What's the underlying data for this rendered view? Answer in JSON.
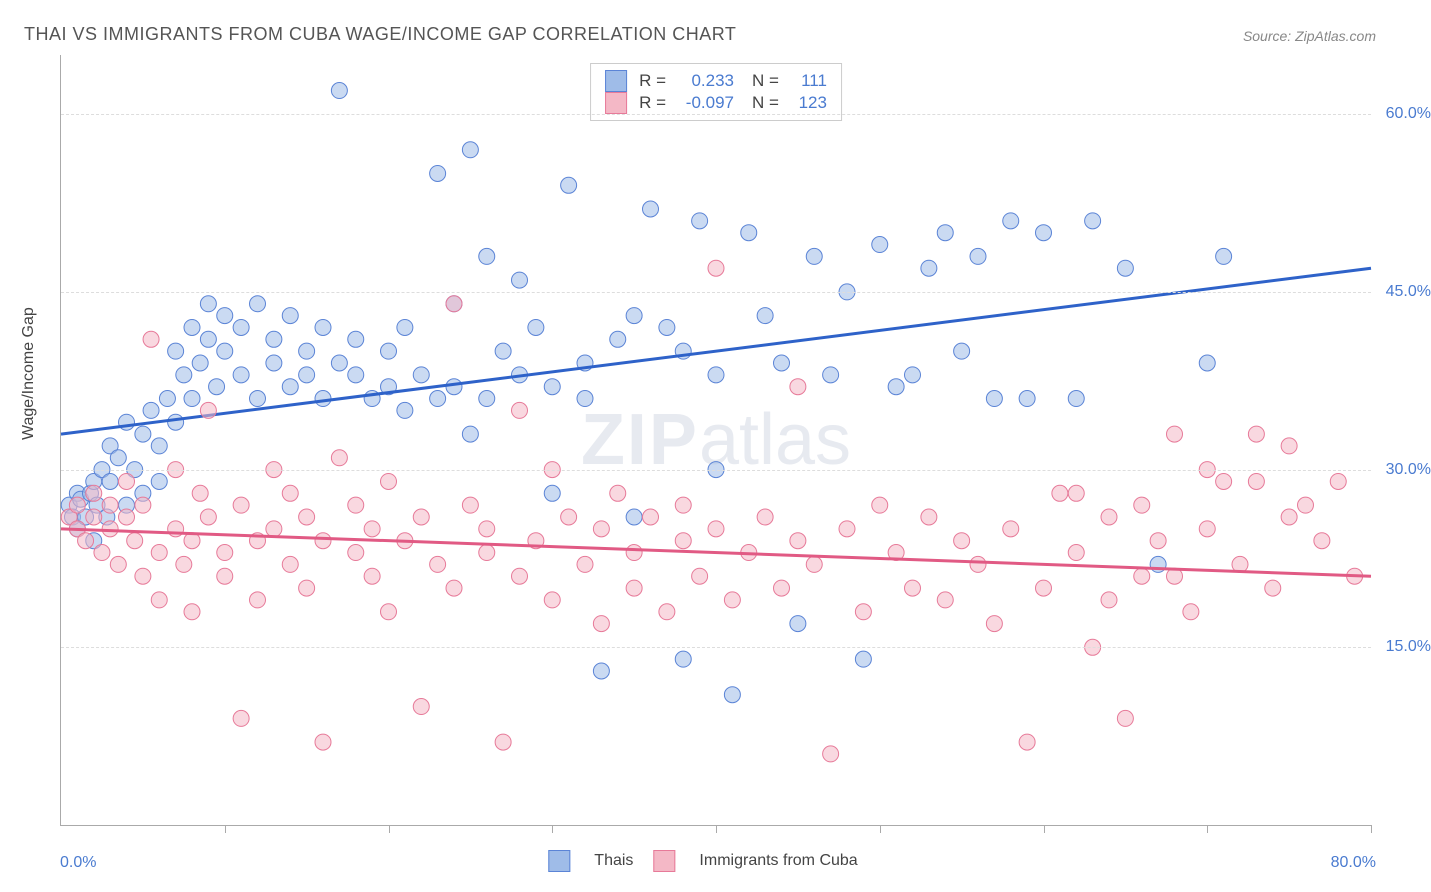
{
  "title": "THAI VS IMMIGRANTS FROM CUBA WAGE/INCOME GAP CORRELATION CHART",
  "source": "Source: ZipAtlas.com",
  "ylabel": "Wage/Income Gap",
  "watermark_zip": "ZIP",
  "watermark_atlas": "atlas",
  "chart": {
    "type": "scatter",
    "xlim": [
      0,
      80
    ],
    "ylim": [
      0,
      65
    ],
    "x_tick_positions": [
      0,
      10,
      20,
      30,
      40,
      50,
      60,
      70,
      80
    ],
    "y_gridlines": [
      15,
      30,
      45,
      60
    ],
    "y_tick_labels": [
      "15.0%",
      "30.0%",
      "45.0%",
      "60.0%"
    ],
    "x_start_label": "0.0%",
    "x_end_label": "80.0%",
    "background_color": "#ffffff",
    "grid_color": "#dddddd",
    "axis_color": "#aaaaaa",
    "label_color": "#4a7bd0",
    "point_radius": 8,
    "point_opacity": 0.55,
    "line_width": 3,
    "series": [
      {
        "name": "Thais",
        "fill_color": "#9fbce8",
        "stroke_color": "#5b84d6",
        "line_color": "#2e62c9",
        "r_label": "R =",
        "r_value": "0.233",
        "n_label": "N =",
        "n_value": "111",
        "trend": {
          "x1": 0,
          "y1": 33,
          "x2": 80,
          "y2": 47
        },
        "points": [
          [
            0.5,
            27
          ],
          [
            0.7,
            26
          ],
          [
            1,
            28
          ],
          [
            1,
            25
          ],
          [
            1.2,
            27.5
          ],
          [
            1.5,
            26
          ],
          [
            1.8,
            28
          ],
          [
            2,
            24
          ],
          [
            2,
            29
          ],
          [
            2.2,
            27
          ],
          [
            2.5,
            30
          ],
          [
            2.8,
            26
          ],
          [
            3,
            32
          ],
          [
            3,
            29
          ],
          [
            3.5,
            31
          ],
          [
            4,
            27
          ],
          [
            4,
            34
          ],
          [
            4.5,
            30
          ],
          [
            5,
            33
          ],
          [
            5,
            28
          ],
          [
            5.5,
            35
          ],
          [
            6,
            32
          ],
          [
            6,
            29
          ],
          [
            6.5,
            36
          ],
          [
            7,
            34
          ],
          [
            7,
            40
          ],
          [
            7.5,
            38
          ],
          [
            8,
            42
          ],
          [
            8,
            36
          ],
          [
            8.5,
            39
          ],
          [
            9,
            41
          ],
          [
            9,
            44
          ],
          [
            9.5,
            37
          ],
          [
            10,
            43
          ],
          [
            10,
            40
          ],
          [
            11,
            42
          ],
          [
            11,
            38
          ],
          [
            12,
            44
          ],
          [
            12,
            36
          ],
          [
            13,
            41
          ],
          [
            13,
            39
          ],
          [
            14,
            37
          ],
          [
            14,
            43
          ],
          [
            15,
            38
          ],
          [
            15,
            40
          ],
          [
            16,
            36
          ],
          [
            16,
            42
          ],
          [
            17,
            62
          ],
          [
            17,
            39
          ],
          [
            18,
            38
          ],
          [
            18,
            41
          ],
          [
            19,
            36
          ],
          [
            20,
            40
          ],
          [
            20,
            37
          ],
          [
            21,
            35
          ],
          [
            21,
            42
          ],
          [
            22,
            38
          ],
          [
            23,
            55
          ],
          [
            23,
            36
          ],
          [
            24,
            44
          ],
          [
            24,
            37
          ],
          [
            25,
            33
          ],
          [
            25,
            57
          ],
          [
            26,
            48
          ],
          [
            26,
            36
          ],
          [
            27,
            40
          ],
          [
            28,
            38
          ],
          [
            28,
            46
          ],
          [
            29,
            42
          ],
          [
            30,
            37
          ],
          [
            30,
            28
          ],
          [
            31,
            54
          ],
          [
            32,
            39
          ],
          [
            32,
            36
          ],
          [
            33,
            13
          ],
          [
            34,
            41
          ],
          [
            35,
            43
          ],
          [
            35,
            26
          ],
          [
            36,
            52
          ],
          [
            37,
            42
          ],
          [
            38,
            40
          ],
          [
            38,
            14
          ],
          [
            39,
            51
          ],
          [
            40,
            30
          ],
          [
            40,
            38
          ],
          [
            41,
            11
          ],
          [
            42,
            50
          ],
          [
            43,
            43
          ],
          [
            44,
            39
          ],
          [
            45,
            17
          ],
          [
            46,
            48
          ],
          [
            47,
            38
          ],
          [
            48,
            45
          ],
          [
            49,
            14
          ],
          [
            50,
            49
          ],
          [
            51,
            37
          ],
          [
            52,
            38
          ],
          [
            53,
            47
          ],
          [
            54,
            50
          ],
          [
            55,
            40
          ],
          [
            56,
            48
          ],
          [
            57,
            36
          ],
          [
            58,
            51
          ],
          [
            59,
            36
          ],
          [
            60,
            50
          ],
          [
            62,
            36
          ],
          [
            63,
            51
          ],
          [
            65,
            47
          ],
          [
            67,
            22
          ],
          [
            70,
            39
          ],
          [
            71,
            48
          ]
        ]
      },
      {
        "name": "Immigrants from Cuba",
        "fill_color": "#f4b8c6",
        "stroke_color": "#e77a99",
        "line_color": "#e15a84",
        "r_label": "R =",
        "r_value": "-0.097",
        "n_label": "N =",
        "n_value": "123",
        "trend": {
          "x1": 0,
          "y1": 25,
          "x2": 80,
          "y2": 21
        },
        "points": [
          [
            0.5,
            26
          ],
          [
            1,
            25
          ],
          [
            1,
            27
          ],
          [
            1.5,
            24
          ],
          [
            2,
            26
          ],
          [
            2,
            28
          ],
          [
            2.5,
            23
          ],
          [
            3,
            25
          ],
          [
            3,
            27
          ],
          [
            3.5,
            22
          ],
          [
            4,
            26
          ],
          [
            4,
            29
          ],
          [
            4.5,
            24
          ],
          [
            5,
            21
          ],
          [
            5,
            27
          ],
          [
            5.5,
            41
          ],
          [
            6,
            23
          ],
          [
            6,
            19
          ],
          [
            7,
            25
          ],
          [
            7,
            30
          ],
          [
            7.5,
            22
          ],
          [
            8,
            24
          ],
          [
            8,
            18
          ],
          [
            8.5,
            28
          ],
          [
            9,
            26
          ],
          [
            9,
            35
          ],
          [
            10,
            23
          ],
          [
            10,
            21
          ],
          [
            11,
            9
          ],
          [
            11,
            27
          ],
          [
            12,
            24
          ],
          [
            12,
            19
          ],
          [
            13,
            30
          ],
          [
            13,
            25
          ],
          [
            14,
            22
          ],
          [
            14,
            28
          ],
          [
            15,
            20
          ],
          [
            15,
            26
          ],
          [
            16,
            24
          ],
          [
            16,
            7
          ],
          [
            17,
            31
          ],
          [
            18,
            23
          ],
          [
            18,
            27
          ],
          [
            19,
            21
          ],
          [
            19,
            25
          ],
          [
            20,
            29
          ],
          [
            20,
            18
          ],
          [
            21,
            24
          ],
          [
            22,
            26
          ],
          [
            22,
            10
          ],
          [
            23,
            22
          ],
          [
            24,
            44
          ],
          [
            24,
            20
          ],
          [
            25,
            27
          ],
          [
            26,
            23
          ],
          [
            26,
            25
          ],
          [
            27,
            7
          ],
          [
            28,
            21
          ],
          [
            28,
            35
          ],
          [
            29,
            24
          ],
          [
            30,
            19
          ],
          [
            30,
            30
          ],
          [
            31,
            26
          ],
          [
            32,
            22
          ],
          [
            33,
            25
          ],
          [
            33,
            17
          ],
          [
            34,
            28
          ],
          [
            35,
            23
          ],
          [
            35,
            20
          ],
          [
            36,
            26
          ],
          [
            37,
            18
          ],
          [
            38,
            24
          ],
          [
            38,
            27
          ],
          [
            39,
            21
          ],
          [
            40,
            47
          ],
          [
            40,
            25
          ],
          [
            41,
            19
          ],
          [
            42,
            23
          ],
          [
            43,
            26
          ],
          [
            44,
            20
          ],
          [
            45,
            24
          ],
          [
            45,
            37
          ],
          [
            46,
            22
          ],
          [
            47,
            6
          ],
          [
            48,
            25
          ],
          [
            49,
            18
          ],
          [
            50,
            27
          ],
          [
            51,
            23
          ],
          [
            52,
            20
          ],
          [
            53,
            26
          ],
          [
            54,
            19
          ],
          [
            55,
            24
          ],
          [
            56,
            22
          ],
          [
            57,
            17
          ],
          [
            58,
            25
          ],
          [
            59,
            7
          ],
          [
            60,
            20
          ],
          [
            61,
            28
          ],
          [
            62,
            23
          ],
          [
            63,
            15
          ],
          [
            64,
            26
          ],
          [
            65,
            9
          ],
          [
            66,
            21
          ],
          [
            67,
            24
          ],
          [
            68,
            33
          ],
          [
            69,
            18
          ],
          [
            70,
            25
          ],
          [
            71,
            29
          ],
          [
            72,
            22
          ],
          [
            73,
            33
          ],
          [
            74,
            20
          ],
          [
            75,
            32
          ],
          [
            76,
            27
          ],
          [
            77,
            24
          ],
          [
            78,
            29
          ],
          [
            79,
            21
          ],
          [
            73,
            29
          ],
          [
            75,
            26
          ],
          [
            70,
            30
          ],
          [
            68,
            21
          ],
          [
            66,
            27
          ],
          [
            64,
            19
          ],
          [
            62,
            28
          ]
        ]
      }
    ]
  },
  "legend_bottom": {
    "series1": "Thais",
    "series2": "Immigrants from Cuba"
  }
}
